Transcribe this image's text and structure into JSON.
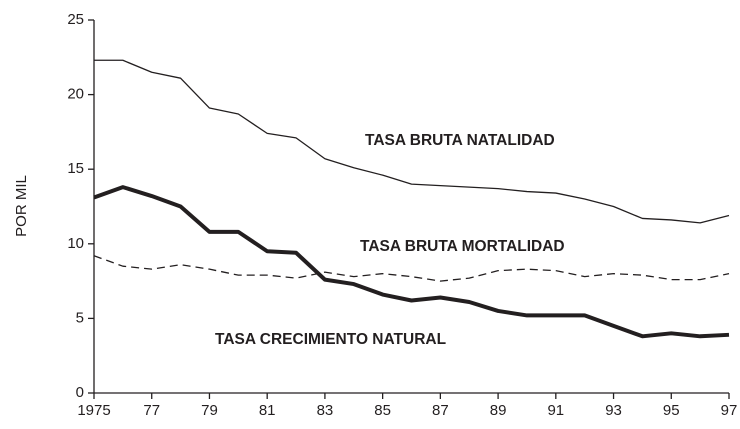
{
  "chart_data": {
    "type": "line",
    "y_label": "POR MIL",
    "x": [
      1975,
      1976,
      1977,
      1978,
      1979,
      1980,
      1981,
      1982,
      1983,
      1984,
      1985,
      1986,
      1987,
      1988,
      1989,
      1990,
      1991,
      1992,
      1993,
      1994,
      1995,
      1996,
      1997
    ],
    "xlim": [
      1975,
      1997
    ],
    "xticks": [
      1975,
      {
        "value": 1977,
        "label": "77"
      },
      {
        "value": 1979,
        "label": "79"
      },
      {
        "value": 1981,
        "label": "81"
      },
      {
        "value": 1983,
        "label": "83"
      },
      {
        "value": 1985,
        "label": "85"
      },
      {
        "value": 1987,
        "label": "87"
      },
      {
        "value": 1989,
        "label": "89"
      },
      {
        "value": 1991,
        "label": "91"
      },
      {
        "value": 1993,
        "label": "93"
      },
      {
        "value": 1995,
        "label": "95"
      },
      {
        "value": 1997,
        "label": "97"
      }
    ],
    "ylim": [
      0,
      25
    ],
    "yticks": [
      0,
      5,
      10,
      15,
      20,
      25
    ],
    "grid": false,
    "series": [
      {
        "name": "TASA BRUTA NATALIDAD",
        "color": "#231f20",
        "linestyle": "solid",
        "linewidth": 1.3,
        "values": [
          22.3,
          22.3,
          21.5,
          21.1,
          19.1,
          18.7,
          17.4,
          17.1,
          15.7,
          15.1,
          14.6,
          14.0,
          13.9,
          13.8,
          13.7,
          13.5,
          13.4,
          13.0,
          12.5,
          11.7,
          11.6,
          11.4,
          11.9
        ]
      },
      {
        "name": "TASA BRUTA MORTALIDAD",
        "color": "#231f20",
        "linestyle": "dashed",
        "linewidth": 1.3,
        "values": [
          9.2,
          8.5,
          8.3,
          8.6,
          8.3,
          7.9,
          7.9,
          7.7,
          8.1,
          7.8,
          8.0,
          7.8,
          7.5,
          7.7,
          8.2,
          8.3,
          8.2,
          7.8,
          8.0,
          7.9,
          7.6,
          7.6,
          8.0
        ]
      },
      {
        "name": "TASA CRECIMIENTO NATURAL",
        "color": "#231f20",
        "linestyle": "solid",
        "linewidth": 4,
        "values": [
          13.1,
          13.8,
          13.2,
          12.5,
          10.8,
          10.8,
          9.5,
          9.4,
          7.6,
          7.3,
          6.6,
          6.2,
          6.4,
          6.1,
          5.5,
          5.2,
          5.2,
          5.2,
          4.5,
          3.8,
          4.0,
          3.8,
          3.9
        ]
      }
    ]
  }
}
